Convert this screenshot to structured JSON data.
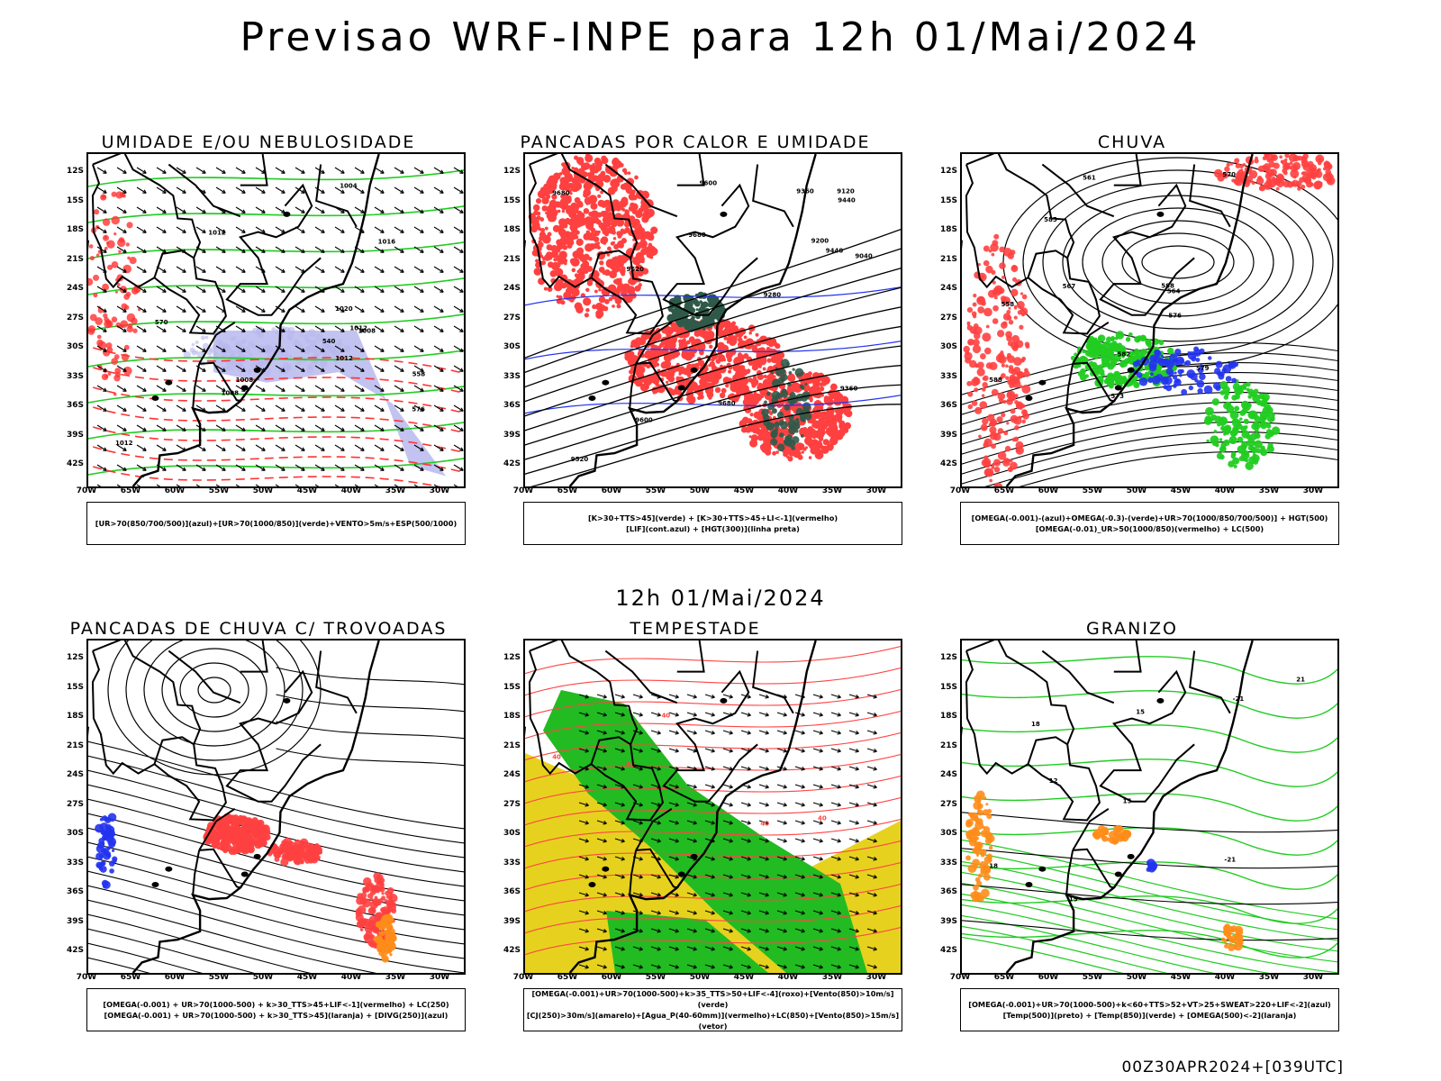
{
  "title": "Previsao WRF-INPE  para 12h 01/Mai/2024",
  "mid_time": "12h 01/Mai/2024",
  "footer": "00Z30APR2024+[039UTC]",
  "lat_labels": [
    "12S",
    "15S",
    "18S",
    "21S",
    "24S",
    "27S",
    "30S",
    "33S",
    "36S",
    "39S",
    "42S"
  ],
  "lon_labels": [
    "70W",
    "65W",
    "60W",
    "55W",
    "50W",
    "45W",
    "40W",
    "35W",
    "30W"
  ],
  "panels": [
    {
      "id": "umidade",
      "title": "UMIDADE E/OU NEBULOSIDADE",
      "legend": [
        "[UR>70(850/700/500)](azul)+[UR>70(1000/850)](verde)+VENTO>5m/s+ESP(500/1000)"
      ],
      "colors": {
        "fill": "#b8b8ee",
        "contour1": "#22cc22",
        "contour2": "#ff3333",
        "lines": "#000000"
      },
      "contour_labels": [
        "1012",
        "1012",
        "1012",
        "1008",
        "1008",
        "1012",
        "1016",
        "1008",
        "1004",
        "1020",
        "576",
        "570",
        "558",
        "540"
      ]
    },
    {
      "id": "pancadas_calor",
      "title": "PANCADAS POR CALOR E UMIDADE",
      "legend": [
        "[K>30+TTS>45](verde) + [K>30+TTS>45+LI<-1](vermelho)",
        "[LIF](cont.azul) + [HGT(300)](linha preta)"
      ],
      "colors": {
        "fill": "#ff4040",
        "fill2": "#2f5a4a",
        "contour1": "#2233ee",
        "lines": "#000000"
      },
      "contour_labels": [
        "9680",
        "9680",
        "9680",
        "9600",
        "9520",
        "9440",
        "9360",
        "9280",
        "9200",
        "9120",
        "9040",
        "9600",
        "9520",
        "9440",
        "9360"
      ]
    },
    {
      "id": "chuva",
      "title": "CHUVA",
      "legend": [
        "[OMEGA(-0.001)-(azul)+OMEGA(-0.3)-(verde)+UR>70(1000/850/700/500)] + HGT(500)",
        "[OMEGA(-0.01)_UR>50(1000/850)(vermelho) + LC(500)"
      ],
      "colors": {
        "fill": "#ff4040",
        "fill2": "#22cc22",
        "fill3": "#2233ee",
        "lines": "#000000"
      },
      "contour_labels": [
        "588",
        "588",
        "585",
        "582",
        "579",
        "576",
        "573",
        "570",
        "567",
        "564",
        "561",
        "558"
      ]
    },
    {
      "id": "pancadas_trovoadas",
      "title": "PANCADAS DE CHUVA C/ TROVOADAS",
      "legend": [
        "[OMEGA(-0.001) + UR>70(1000-500) + k>30_TTS>45+LIF<-1](vermelho) + LC(250)",
        "[OMEGA(-0.001) + UR>70(1000-500) + k>30_TTS>45](laranja) + [DIVG(250)](azul)"
      ],
      "colors": {
        "fill": "#ff4040",
        "fill2": "#ff8c1a",
        "fill3": "#2233ee",
        "lines": "#000000"
      },
      "contour_labels": []
    },
    {
      "id": "tempestade",
      "title": "TEMPESTADE",
      "legend": [
        "[OMEGA(-0.001)+UR>70(1000-500)+k>35_TTS>50+LIF<-4](roxo)+[Vento(850)>10m/s](verde)",
        "[CJ(250)>30m/s](amarelo)+[Agua_P(40-60mm)](vermelho)+LC(850)+[Vento(850)>15m/s](vetor)"
      ],
      "colors": {
        "fill": "#e6d21e",
        "fill2": "#22bb22",
        "contour1": "#ff4444",
        "lines": "#000000"
      },
      "contour_labels": [
        "40",
        "40",
        "40",
        "40",
        "40"
      ]
    },
    {
      "id": "granizo",
      "title": "GRANIZO",
      "legend": [
        "[OMEGA(-0.001)+UR>70(1000-500)+k<60+TTS>52+VT>25+SWEAT>220+LIF<-2](azul)",
        "[Temp(500)](preto) + [Temp(850)](verde) + [OMEGA(500)<-2](laranja)"
      ],
      "colors": {
        "contour1": "#22cc22",
        "fill2": "#ff8c1a",
        "fill3": "#2233ee",
        "lines": "#000000"
      },
      "contour_labels": [
        "18",
        "15",
        "15",
        "12",
        "15",
        "18",
        "21",
        "-21",
        "-21"
      ]
    }
  ]
}
